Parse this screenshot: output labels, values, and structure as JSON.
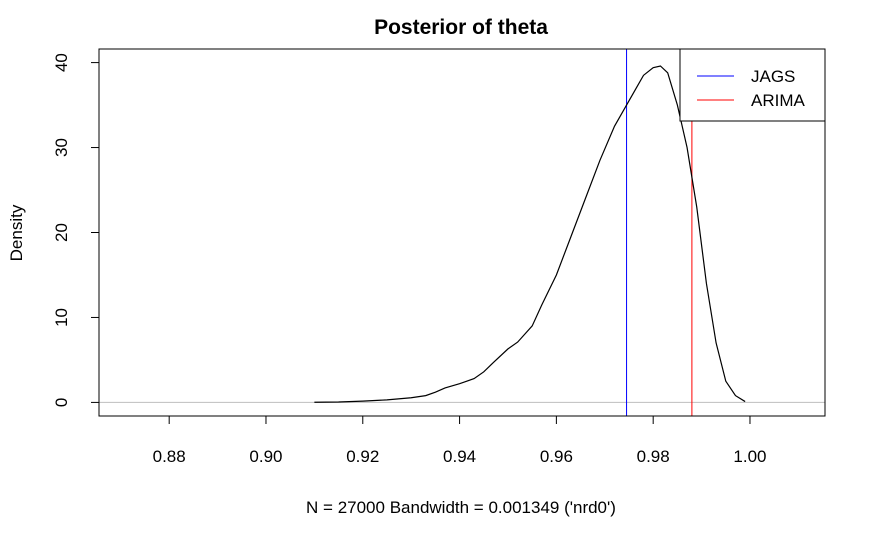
{
  "chart_data": {
    "type": "line",
    "title": "Posterior of theta",
    "xlabel": "N = 27000   Bandwidth = 0.001349 ('nrd0')",
    "ylabel": "Density",
    "xlim": [
      0.8655,
      1.0155
    ],
    "ylim": [
      -1.6,
      41.6
    ],
    "x_ticks": [
      0.88,
      0.9,
      0.92,
      0.94,
      0.96,
      0.98,
      1.0
    ],
    "x_tick_labels": [
      "0.88",
      "0.90",
      "0.92",
      "0.94",
      "0.96",
      "0.98",
      "1.00"
    ],
    "y_ticks": [
      0,
      10,
      20,
      30,
      40
    ],
    "y_tick_labels": [
      "0",
      "10",
      "20",
      "30",
      "40"
    ],
    "baseline_color": "#bebebe",
    "series": [
      {
        "color": "#000000",
        "x": [
          0.91,
          0.915,
          0.92,
          0.925,
          0.93,
          0.933,
          0.935,
          0.937,
          0.94,
          0.943,
          0.945,
          0.947,
          0.95,
          0.952,
          0.955,
          0.957,
          0.96,
          0.963,
          0.966,
          0.969,
          0.972,
          0.975,
          0.978,
          0.98,
          0.9815,
          0.983,
          0.985,
          0.987,
          0.989,
          0.991,
          0.993,
          0.995,
          0.997,
          0.999
        ],
        "y": [
          0.02,
          0.05,
          0.15,
          0.3,
          0.55,
          0.8,
          1.2,
          1.7,
          2.2,
          2.8,
          3.6,
          4.7,
          6.3,
          7.1,
          9.0,
          11.5,
          15.0,
          19.5,
          24.0,
          28.5,
          32.5,
          35.5,
          38.5,
          39.4,
          39.6,
          38.8,
          35.0,
          30.0,
          23.0,
          14.0,
          7.0,
          2.5,
          0.8,
          0.1
        ]
      }
    ],
    "vlines": [
      {
        "name": "JAGS",
        "x": 0.9745,
        "color": "#0000ff"
      },
      {
        "name": "ARIMA",
        "x": 0.988,
        "color": "#ff0000"
      }
    ],
    "legend": {
      "position": "top-right",
      "entries": [
        {
          "label": "JAGS",
          "color": "#0000ff"
        },
        {
          "label": "ARIMA",
          "color": "#ff0000"
        }
      ]
    }
  }
}
